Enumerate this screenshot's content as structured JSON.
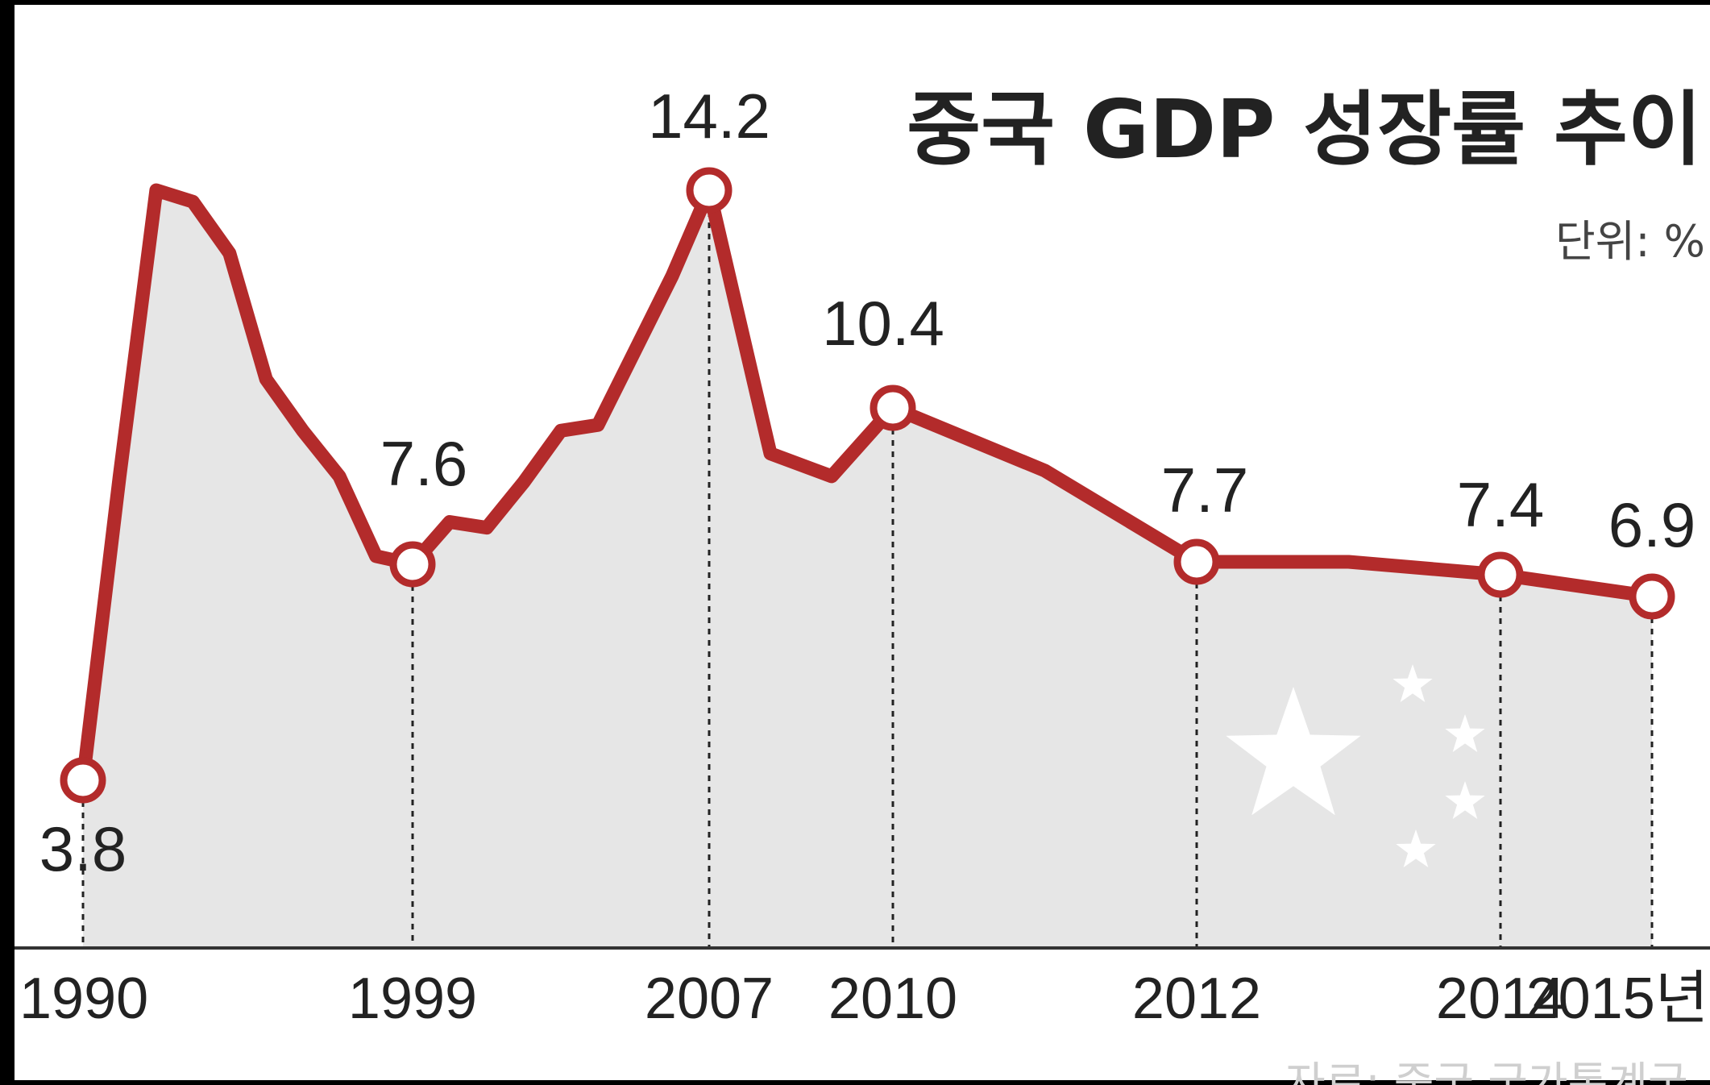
{
  "chart_data": {
    "type": "line",
    "title": "중국 GDP 성장률 추이",
    "unit_label": "단위: %",
    "source_text": "자료: 중국 국가통계국",
    "x_ticks": [
      "1990",
      "1999",
      "2007",
      "2010",
      "2012",
      "2014",
      "2015년"
    ],
    "x": [
      1990,
      1991,
      1992,
      1993,
      1994,
      1995,
      1996,
      1997,
      1998,
      1999,
      2000,
      2001,
      2002,
      2003,
      2004,
      2005,
      2006,
      2007,
      2008,
      2009,
      2010,
      2011,
      2012,
      2013,
      2014,
      2015
    ],
    "y": [
      3.8,
      9.2,
      14.2,
      14.0,
      13.1,
      10.9,
      10.0,
      9.2,
      7.8,
      7.6,
      8.4,
      8.3,
      9.1,
      10.0,
      10.1,
      11.4,
      12.7,
      14.2,
      9.6,
      9.2,
      10.4,
      9.3,
      7.7,
      7.7,
      7.4,
      6.9
    ],
    "labeled_points": [
      {
        "year": 1990,
        "label": "3.8"
      },
      {
        "year": 1999,
        "label": "7.6"
      },
      {
        "year": 2007,
        "label": "14.2"
      },
      {
        "year": 2010,
        "label": "10.4"
      },
      {
        "year": 2012,
        "label": "7.7"
      },
      {
        "year": 2014,
        "label": "7.4"
      },
      {
        "year": 2015,
        "label": "6.9"
      }
    ],
    "colors": {
      "line": "#b32b2b",
      "area": "#e6e6e6",
      "background": "#ffffff",
      "text": "#222222",
      "frame": "#000000"
    },
    "grid": false,
    "decoration": "china-flag-stars-watermark"
  }
}
